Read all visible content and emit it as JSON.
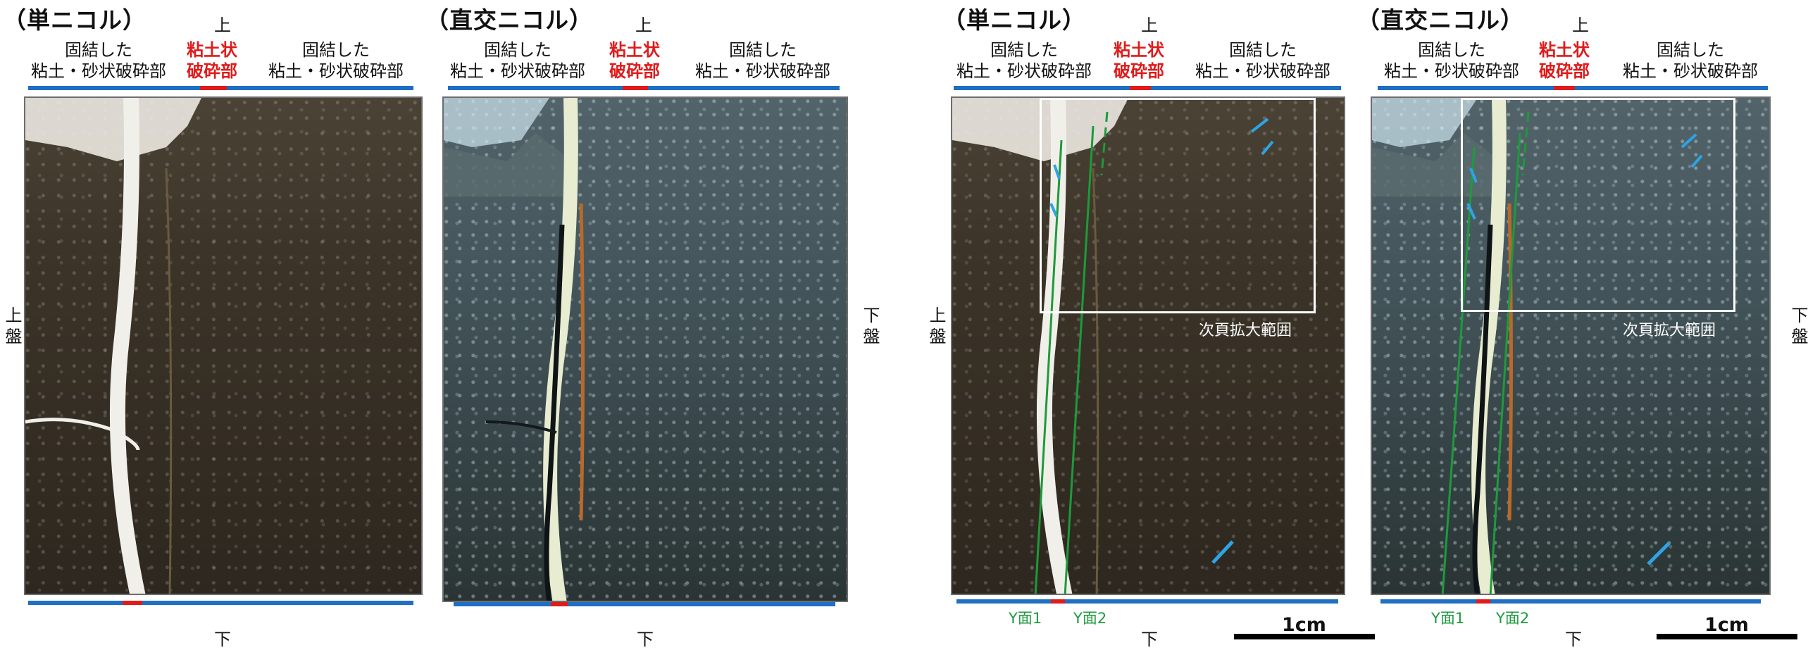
{
  "panels": [
    {
      "title": "（単ニコル）",
      "top_label": "上",
      "bottom_label": "下",
      "left_side": "上盤",
      "right_side": "",
      "left_zone": [
        "固結した",
        "粘土・砂状破砕部"
      ],
      "center_zone": [
        "粘土状",
        "破砕部"
      ],
      "right_zone": [
        "固結した",
        "粘土・砂状破砕部"
      ],
      "zoom_label": "",
      "y_labels": []
    },
    {
      "title": "（直交ニコル）",
      "top_label": "上",
      "bottom_label": "下",
      "left_side": "",
      "right_side": "下盤",
      "left_zone": [
        "固結した",
        "粘土・砂状破砕部"
      ],
      "center_zone": [
        "粘土状",
        "破砕部"
      ],
      "right_zone": [
        "固結した",
        "粘土・砂状破砕部"
      ],
      "zoom_label": "",
      "y_labels": []
    },
    {
      "title": "（単ニコル）",
      "top_label": "上",
      "bottom_label": "下",
      "left_side": "上盤",
      "right_side": "",
      "left_zone": [
        "固結した",
        "粘土・砂状破砕部"
      ],
      "center_zone": [
        "粘土状",
        "破砕部"
      ],
      "right_zone": [
        "固結した",
        "粘土・砂状破砕部"
      ],
      "zoom_label": "次頁拡大範囲",
      "y_labels": [
        "Y面1",
        "Y面2"
      ],
      "scale": "1cm"
    },
    {
      "title": "（直交ニコル）",
      "top_label": "上",
      "bottom_label": "下",
      "left_side": "",
      "right_side": "下盤",
      "left_zone": [
        "固結した",
        "粘土・砂状破砕部"
      ],
      "center_zone": [
        "粘土状",
        "破砕部"
      ],
      "right_zone": [
        "固結した",
        "粘土・砂状破砕部"
      ],
      "zoom_label": "次頁拡大範囲",
      "y_labels": [
        "Y面1",
        "Y面2"
      ],
      "scale": "1cm"
    }
  ],
  "colors": {
    "fractured_zone_bar": "#1f6fc2",
    "clay_zone_bar": "#e01b1b",
    "y_plane_line": "#1c9b3b",
    "riedel_marks": "#2ea3e6"
  }
}
